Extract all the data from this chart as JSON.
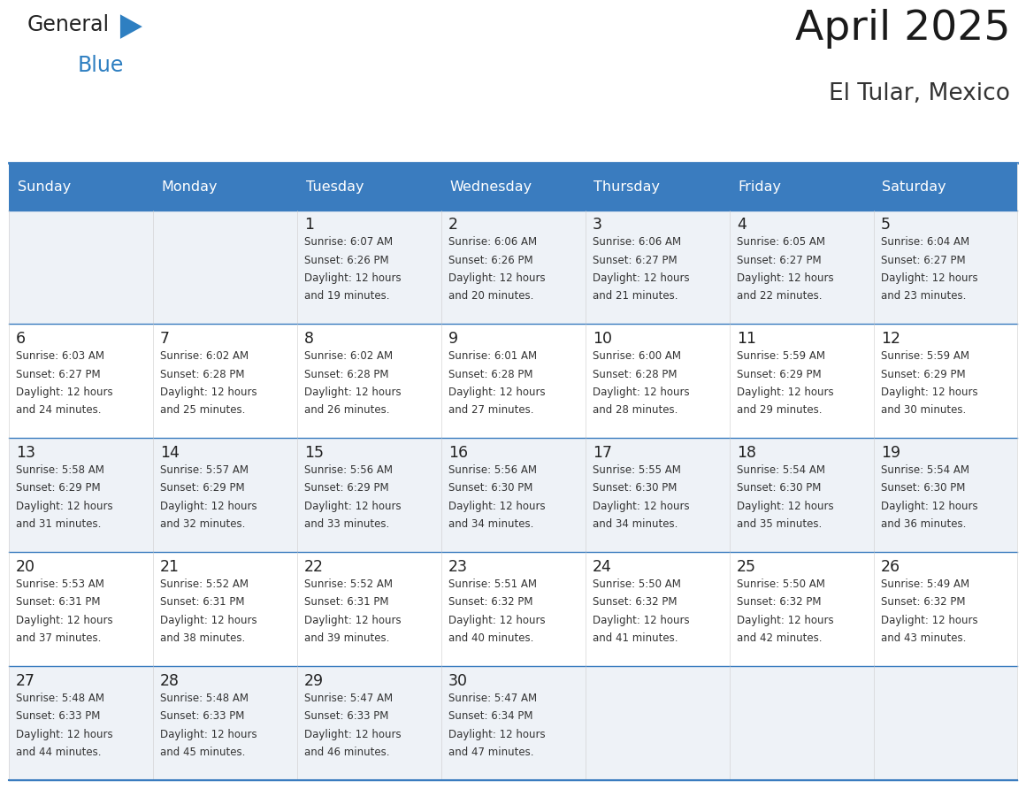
{
  "title": "April 2025",
  "subtitle": "El Tular, Mexico",
  "header_color": "#3a7cbf",
  "header_text_color": "#ffffff",
  "cell_bg_even": "#eef2f7",
  "cell_bg_odd": "#ffffff",
  "border_color": "#3a7cbf",
  "grid_line_color": "#3a7cbf",
  "text_color": "#333333",
  "day_num_color": "#222222",
  "logo_text_color": "#222222",
  "logo_blue_color": "#2e7fc1",
  "logo_tri_color": "#2e7fc1",
  "days_of_week": [
    "Sunday",
    "Monday",
    "Tuesday",
    "Wednesday",
    "Thursday",
    "Friday",
    "Saturday"
  ],
  "weeks": [
    [
      {
        "day": "",
        "sunrise": "",
        "sunset": "",
        "daylight1": "",
        "daylight2": ""
      },
      {
        "day": "",
        "sunrise": "",
        "sunset": "",
        "daylight1": "",
        "daylight2": ""
      },
      {
        "day": "1",
        "sunrise": "Sunrise: 6:07 AM",
        "sunset": "Sunset: 6:26 PM",
        "daylight1": "Daylight: 12 hours",
        "daylight2": "and 19 minutes."
      },
      {
        "day": "2",
        "sunrise": "Sunrise: 6:06 AM",
        "sunset": "Sunset: 6:26 PM",
        "daylight1": "Daylight: 12 hours",
        "daylight2": "and 20 minutes."
      },
      {
        "day": "3",
        "sunrise": "Sunrise: 6:06 AM",
        "sunset": "Sunset: 6:27 PM",
        "daylight1": "Daylight: 12 hours",
        "daylight2": "and 21 minutes."
      },
      {
        "day": "4",
        "sunrise": "Sunrise: 6:05 AM",
        "sunset": "Sunset: 6:27 PM",
        "daylight1": "Daylight: 12 hours",
        "daylight2": "and 22 minutes."
      },
      {
        "day": "5",
        "sunrise": "Sunrise: 6:04 AM",
        "sunset": "Sunset: 6:27 PM",
        "daylight1": "Daylight: 12 hours",
        "daylight2": "and 23 minutes."
      }
    ],
    [
      {
        "day": "6",
        "sunrise": "Sunrise: 6:03 AM",
        "sunset": "Sunset: 6:27 PM",
        "daylight1": "Daylight: 12 hours",
        "daylight2": "and 24 minutes."
      },
      {
        "day": "7",
        "sunrise": "Sunrise: 6:02 AM",
        "sunset": "Sunset: 6:28 PM",
        "daylight1": "Daylight: 12 hours",
        "daylight2": "and 25 minutes."
      },
      {
        "day": "8",
        "sunrise": "Sunrise: 6:02 AM",
        "sunset": "Sunset: 6:28 PM",
        "daylight1": "Daylight: 12 hours",
        "daylight2": "and 26 minutes."
      },
      {
        "day": "9",
        "sunrise": "Sunrise: 6:01 AM",
        "sunset": "Sunset: 6:28 PM",
        "daylight1": "Daylight: 12 hours",
        "daylight2": "and 27 minutes."
      },
      {
        "day": "10",
        "sunrise": "Sunrise: 6:00 AM",
        "sunset": "Sunset: 6:28 PM",
        "daylight1": "Daylight: 12 hours",
        "daylight2": "and 28 minutes."
      },
      {
        "day": "11",
        "sunrise": "Sunrise: 5:59 AM",
        "sunset": "Sunset: 6:29 PM",
        "daylight1": "Daylight: 12 hours",
        "daylight2": "and 29 minutes."
      },
      {
        "day": "12",
        "sunrise": "Sunrise: 5:59 AM",
        "sunset": "Sunset: 6:29 PM",
        "daylight1": "Daylight: 12 hours",
        "daylight2": "and 30 minutes."
      }
    ],
    [
      {
        "day": "13",
        "sunrise": "Sunrise: 5:58 AM",
        "sunset": "Sunset: 6:29 PM",
        "daylight1": "Daylight: 12 hours",
        "daylight2": "and 31 minutes."
      },
      {
        "day": "14",
        "sunrise": "Sunrise: 5:57 AM",
        "sunset": "Sunset: 6:29 PM",
        "daylight1": "Daylight: 12 hours",
        "daylight2": "and 32 minutes."
      },
      {
        "day": "15",
        "sunrise": "Sunrise: 5:56 AM",
        "sunset": "Sunset: 6:29 PM",
        "daylight1": "Daylight: 12 hours",
        "daylight2": "and 33 minutes."
      },
      {
        "day": "16",
        "sunrise": "Sunrise: 5:56 AM",
        "sunset": "Sunset: 6:30 PM",
        "daylight1": "Daylight: 12 hours",
        "daylight2": "and 34 minutes."
      },
      {
        "day": "17",
        "sunrise": "Sunrise: 5:55 AM",
        "sunset": "Sunset: 6:30 PM",
        "daylight1": "Daylight: 12 hours",
        "daylight2": "and 34 minutes."
      },
      {
        "day": "18",
        "sunrise": "Sunrise: 5:54 AM",
        "sunset": "Sunset: 6:30 PM",
        "daylight1": "Daylight: 12 hours",
        "daylight2": "and 35 minutes."
      },
      {
        "day": "19",
        "sunrise": "Sunrise: 5:54 AM",
        "sunset": "Sunset: 6:30 PM",
        "daylight1": "Daylight: 12 hours",
        "daylight2": "and 36 minutes."
      }
    ],
    [
      {
        "day": "20",
        "sunrise": "Sunrise: 5:53 AM",
        "sunset": "Sunset: 6:31 PM",
        "daylight1": "Daylight: 12 hours",
        "daylight2": "and 37 minutes."
      },
      {
        "day": "21",
        "sunrise": "Sunrise: 5:52 AM",
        "sunset": "Sunset: 6:31 PM",
        "daylight1": "Daylight: 12 hours",
        "daylight2": "and 38 minutes."
      },
      {
        "day": "22",
        "sunrise": "Sunrise: 5:52 AM",
        "sunset": "Sunset: 6:31 PM",
        "daylight1": "Daylight: 12 hours",
        "daylight2": "and 39 minutes."
      },
      {
        "day": "23",
        "sunrise": "Sunrise: 5:51 AM",
        "sunset": "Sunset: 6:32 PM",
        "daylight1": "Daylight: 12 hours",
        "daylight2": "and 40 minutes."
      },
      {
        "day": "24",
        "sunrise": "Sunrise: 5:50 AM",
        "sunset": "Sunset: 6:32 PM",
        "daylight1": "Daylight: 12 hours",
        "daylight2": "and 41 minutes."
      },
      {
        "day": "25",
        "sunrise": "Sunrise: 5:50 AM",
        "sunset": "Sunset: 6:32 PM",
        "daylight1": "Daylight: 12 hours",
        "daylight2": "and 42 minutes."
      },
      {
        "day": "26",
        "sunrise": "Sunrise: 5:49 AM",
        "sunset": "Sunset: 6:32 PM",
        "daylight1": "Daylight: 12 hours",
        "daylight2": "and 43 minutes."
      }
    ],
    [
      {
        "day": "27",
        "sunrise": "Sunrise: 5:48 AM",
        "sunset": "Sunset: 6:33 PM",
        "daylight1": "Daylight: 12 hours",
        "daylight2": "and 44 minutes."
      },
      {
        "day": "28",
        "sunrise": "Sunrise: 5:48 AM",
        "sunset": "Sunset: 6:33 PM",
        "daylight1": "Daylight: 12 hours",
        "daylight2": "and 45 minutes."
      },
      {
        "day": "29",
        "sunrise": "Sunrise: 5:47 AM",
        "sunset": "Sunset: 6:33 PM",
        "daylight1": "Daylight: 12 hours",
        "daylight2": "and 46 minutes."
      },
      {
        "day": "30",
        "sunrise": "Sunrise: 5:47 AM",
        "sunset": "Sunset: 6:34 PM",
        "daylight1": "Daylight: 12 hours",
        "daylight2": "and 47 minutes."
      },
      {
        "day": "",
        "sunrise": "",
        "sunset": "",
        "daylight1": "",
        "daylight2": ""
      },
      {
        "day": "",
        "sunrise": "",
        "sunset": "",
        "daylight1": "",
        "daylight2": ""
      },
      {
        "day": "",
        "sunrise": "",
        "sunset": "",
        "daylight1": "",
        "daylight2": ""
      }
    ]
  ]
}
